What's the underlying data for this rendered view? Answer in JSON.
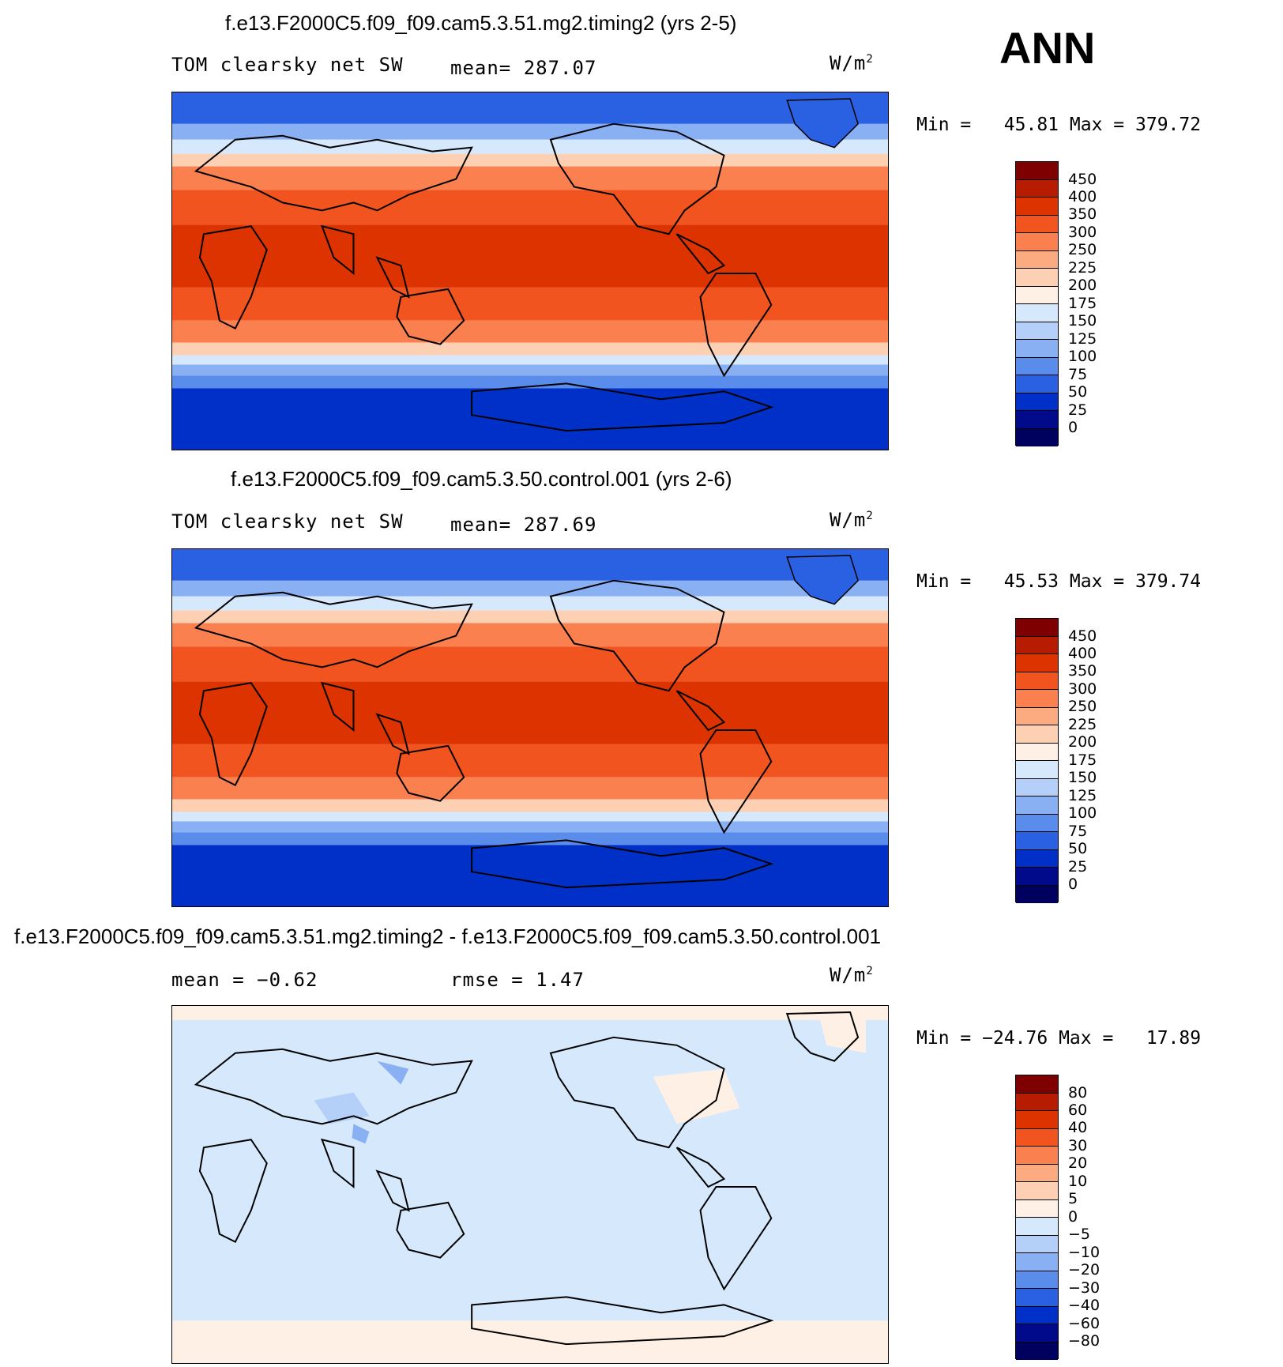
{
  "season": "ANN",
  "panels": [
    {
      "title": "f.e13.F2000C5.f09_f09.cam5.3.51.mg2.timing2 (yrs 2-5)",
      "variable": "TOM clearsky net SW",
      "stat1": "mean= 287.07",
      "stat2": "",
      "units": "W/m",
      "units_exp": "2",
      "min_label": "Min =",
      "min_value": "45.81",
      "max_label": "Max =",
      "max_value": "379.72",
      "levels": [
        "450",
        "400",
        "350",
        "300",
        "250",
        "225",
        "200",
        "175",
        "150",
        "125",
        "100",
        "75",
        "50",
        "25",
        "0"
      ]
    },
    {
      "title": "f.e13.F2000C5.f09_f09.cam5.3.50.control.001 (yrs 2-6)",
      "variable": "TOM clearsky net SW",
      "stat1": "mean= 287.69",
      "stat2": "",
      "units": "W/m",
      "units_exp": "2",
      "min_label": "Min =",
      "min_value": "45.53",
      "max_label": "Max =",
      "max_value": "379.74",
      "levels": [
        "450",
        "400",
        "350",
        "300",
        "250",
        "225",
        "200",
        "175",
        "150",
        "125",
        "100",
        "75",
        "50",
        "25",
        "0"
      ]
    },
    {
      "title": "f.e13.F2000C5.f09_f09.cam5.3.51.mg2.timing2 - f.e13.F2000C5.f09_f09.cam5.3.50.control.001",
      "variable": "",
      "stat1": "mean =   −0.62",
      "stat2": "rmse =    1.47",
      "units": "W/m",
      "units_exp": "2",
      "min_label": "Min =",
      "min_value": "−24.76",
      "max_label": "Max =",
      "max_value": "17.89",
      "levels": [
        "80",
        "60",
        "40",
        "30",
        "20",
        "10",
        "5",
        "0",
        "−5",
        "−10",
        "−20",
        "−30",
        "−40",
        "−60",
        "−80"
      ]
    }
  ],
  "colors": {
    "scale": [
      "#7f0000",
      "#b71c00",
      "#dd3300",
      "#f25420",
      "#fa8050",
      "#fcaa80",
      "#fdd0b4",
      "#fef0e4",
      "#d6e8fb",
      "#b4d0f8",
      "#88b0f2",
      "#5a8cec",
      "#2a60e2",
      "#0030c8",
      "#000a8a",
      "#00005e"
    ],
    "land": "#000000"
  }
}
